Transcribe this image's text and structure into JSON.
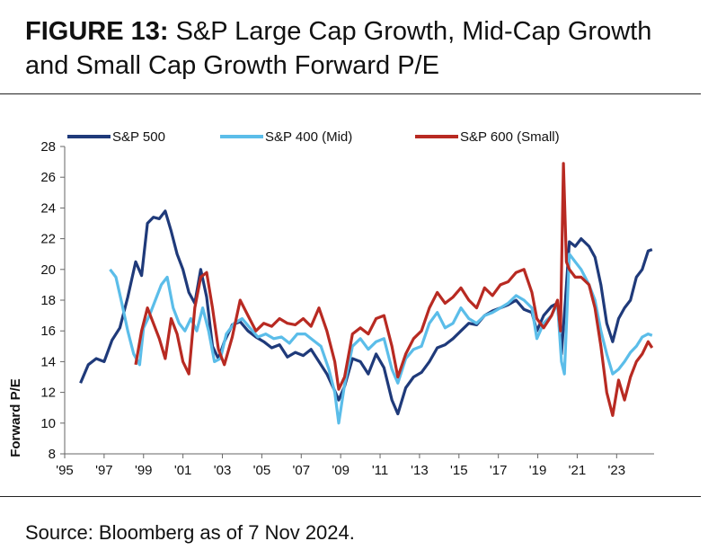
{
  "header": {
    "figure_label": "FIGURE 13:",
    "title_rest": " S&P Large Cap Growth, Mid-Cap Growth and Small Cap Growth Forward P/E"
  },
  "footer": {
    "source": "Source: Bloomberg as of 7 Nov 2024."
  },
  "chart_data": {
    "type": "line",
    "title": "",
    "ylabel": "Forward P/E",
    "xlabel": "",
    "ylim": [
      8,
      28
    ],
    "xlim": [
      1995,
      2024.9
    ],
    "yticks": [
      "8",
      "10",
      "12",
      "14",
      "16",
      "18",
      "20",
      "22",
      "24",
      "26",
      "28"
    ],
    "xticks": [
      "'95",
      "'97",
      "'99",
      "'01",
      "'03",
      "'05",
      "'07",
      "'09",
      "'11",
      "'13",
      "'15",
      "'17",
      "'19",
      "'21",
      "'23"
    ],
    "xtick_years": [
      1995,
      1997,
      1999,
      2001,
      2003,
      2005,
      2007,
      2009,
      2011,
      2013,
      2015,
      2017,
      2019,
      2021,
      2023
    ],
    "legend_position": "top",
    "series": [
      {
        "name": "S&P 500",
        "color": "#1f3a7a",
        "x": [
          1995.8,
          1996.2,
          1996.6,
          1997.0,
          1997.4,
          1997.8,
          1998.2,
          1998.6,
          1998.9,
          1999.2,
          1999.5,
          1999.8,
          2000.1,
          2000.4,
          2000.7,
          2001.0,
          2001.3,
          2001.6,
          2001.9,
          2002.2,
          2002.5,
          2002.8,
          2003.1,
          2003.5,
          2003.9,
          2004.3,
          2004.7,
          2005.1,
          2005.5,
          2005.9,
          2006.3,
          2006.7,
          2007.1,
          2007.5,
          2007.9,
          2008.3,
          2008.7,
          2008.9,
          2009.2,
          2009.6,
          2010.0,
          2010.4,
          2010.8,
          2011.2,
          2011.6,
          2011.9,
          2012.3,
          2012.7,
          2013.1,
          2013.5,
          2013.9,
          2014.3,
          2014.7,
          2015.1,
          2015.5,
          2015.9,
          2016.3,
          2016.7,
          2017.1,
          2017.5,
          2017.9,
          2018.3,
          2018.7,
          2018.95,
          2019.3,
          2019.7,
          2020.0,
          2020.2,
          2020.4,
          2020.6,
          2020.9,
          2021.2,
          2021.6,
          2021.9,
          2022.2,
          2022.5,
          2022.8,
          2023.1,
          2023.4,
          2023.7,
          2024.0,
          2024.3,
          2024.6,
          2024.8
        ],
        "values": [
          12.6,
          13.8,
          14.2,
          14.0,
          15.4,
          16.2,
          18.2,
          20.5,
          19.6,
          23.0,
          23.4,
          23.3,
          23.8,
          22.5,
          21.0,
          20.0,
          18.5,
          17.8,
          20.0,
          18.2,
          15.0,
          14.2,
          15.3,
          16.4,
          16.6,
          16.0,
          15.6,
          15.3,
          14.9,
          15.1,
          14.3,
          14.6,
          14.4,
          14.8,
          14.0,
          13.2,
          12.1,
          11.5,
          12.4,
          14.2,
          14.0,
          13.2,
          14.5,
          13.6,
          11.5,
          10.6,
          12.3,
          13.0,
          13.3,
          14.0,
          14.9,
          15.1,
          15.5,
          16.0,
          16.5,
          16.4,
          17.0,
          17.3,
          17.5,
          17.7,
          18.0,
          17.4,
          17.2,
          16.0,
          17.0,
          17.6,
          17.8,
          14.5,
          18.0,
          21.8,
          21.5,
          22.0,
          21.5,
          20.8,
          19.0,
          16.5,
          15.3,
          16.8,
          17.5,
          18.0,
          19.5,
          20.0,
          21.2,
          21.3
        ]
      },
      {
        "name": "S&P 400 (Mid)",
        "color": "#5bbde9",
        "x": [
          1997.3,
          1997.6,
          1997.9,
          1998.2,
          1998.5,
          1998.8,
          1999.0,
          1999.3,
          1999.6,
          1999.9,
          2000.2,
          2000.5,
          2000.8,
          2001.1,
          2001.4,
          2001.7,
          2002.0,
          2002.3,
          2002.6,
          2002.9,
          2003.2,
          2003.6,
          2004.0,
          2004.4,
          2004.8,
          2005.2,
          2005.6,
          2006.0,
          2006.4,
          2006.8,
          2007.2,
          2007.6,
          2008.0,
          2008.4,
          2008.7,
          2008.9,
          2009.2,
          2009.6,
          2010.0,
          2010.4,
          2010.8,
          2011.2,
          2011.6,
          2011.9,
          2012.3,
          2012.7,
          2013.1,
          2013.5,
          2013.9,
          2014.3,
          2014.7,
          2015.1,
          2015.5,
          2015.9,
          2016.3,
          2016.7,
          2017.1,
          2017.5,
          2017.9,
          2018.3,
          2018.7,
          2018.95,
          2019.3,
          2019.7,
          2020.0,
          2020.2,
          2020.35,
          2020.6,
          2020.9,
          2021.2,
          2021.6,
          2021.9,
          2022.2,
          2022.5,
          2022.8,
          2023.1,
          2023.4,
          2023.7,
          2024.0,
          2024.3,
          2024.6,
          2024.8
        ],
        "values": [
          20.0,
          19.5,
          17.8,
          16.0,
          14.5,
          13.8,
          16.2,
          17.0,
          18.0,
          19.0,
          19.5,
          17.5,
          16.5,
          16.0,
          16.8,
          16.0,
          17.5,
          16.0,
          14.0,
          14.2,
          15.8,
          16.5,
          16.8,
          16.2,
          15.6,
          15.8,
          15.5,
          15.6,
          15.2,
          15.8,
          15.8,
          15.4,
          15.0,
          13.5,
          12.0,
          10.0,
          12.5,
          15.0,
          15.5,
          14.8,
          15.3,
          15.5,
          13.5,
          12.6,
          14.2,
          14.8,
          15.0,
          16.5,
          17.2,
          16.2,
          16.5,
          17.5,
          16.8,
          16.5,
          17.0,
          17.2,
          17.5,
          17.8,
          18.3,
          18.0,
          17.5,
          15.5,
          16.5,
          17.0,
          17.8,
          14.0,
          13.2,
          21.0,
          20.5,
          20.0,
          19.0,
          18.0,
          16.0,
          14.5,
          13.2,
          13.5,
          14.0,
          14.6,
          15.0,
          15.6,
          15.8,
          15.7
        ]
      },
      {
        "name": "S&P 600 (Small)",
        "color": "#b82a22",
        "x": [
          1998.6,
          1998.9,
          1999.2,
          1999.5,
          1999.8,
          2000.1,
          2000.4,
          2000.7,
          2001.0,
          2001.3,
          2001.6,
          2001.9,
          2002.2,
          2002.5,
          2002.8,
          2003.1,
          2003.5,
          2003.9,
          2004.3,
          2004.7,
          2005.1,
          2005.5,
          2005.9,
          2006.3,
          2006.7,
          2007.1,
          2007.5,
          2007.9,
          2008.3,
          2008.7,
          2008.9,
          2009.2,
          2009.6,
          2010.0,
          2010.4,
          2010.8,
          2011.2,
          2011.6,
          2011.9,
          2012.3,
          2012.7,
          2013.1,
          2013.5,
          2013.9,
          2014.3,
          2014.7,
          2015.1,
          2015.5,
          2015.9,
          2016.3,
          2016.7,
          2017.1,
          2017.5,
          2017.9,
          2018.3,
          2018.7,
          2018.95,
          2019.3,
          2019.7,
          2020.0,
          2020.15,
          2020.3,
          2020.45,
          2020.6,
          2020.9,
          2021.2,
          2021.6,
          2021.9,
          2022.2,
          2022.5,
          2022.8,
          2023.1,
          2023.4,
          2023.7,
          2024.0,
          2024.3,
          2024.6,
          2024.8
        ],
        "values": [
          13.8,
          16.0,
          17.5,
          16.5,
          15.5,
          14.2,
          16.8,
          15.8,
          14.0,
          13.2,
          17.5,
          19.5,
          19.8,
          17.5,
          14.8,
          13.8,
          15.6,
          18.0,
          17.0,
          16.0,
          16.5,
          16.3,
          16.8,
          16.5,
          16.4,
          16.8,
          16.3,
          17.5,
          16.0,
          14.0,
          12.2,
          13.0,
          15.8,
          16.2,
          15.8,
          16.8,
          17.0,
          15.0,
          13.0,
          14.5,
          15.5,
          16.0,
          17.5,
          18.5,
          17.8,
          18.2,
          18.8,
          18.0,
          17.5,
          18.8,
          18.3,
          19.0,
          19.2,
          19.8,
          20.0,
          18.5,
          16.8,
          16.2,
          17.0,
          18.0,
          16.0,
          26.9,
          20.5,
          20.0,
          19.5,
          19.5,
          19.0,
          17.5,
          15.0,
          12.0,
          10.5,
          12.8,
          11.5,
          13.0,
          14.0,
          14.5,
          15.3,
          14.9
        ]
      }
    ]
  }
}
